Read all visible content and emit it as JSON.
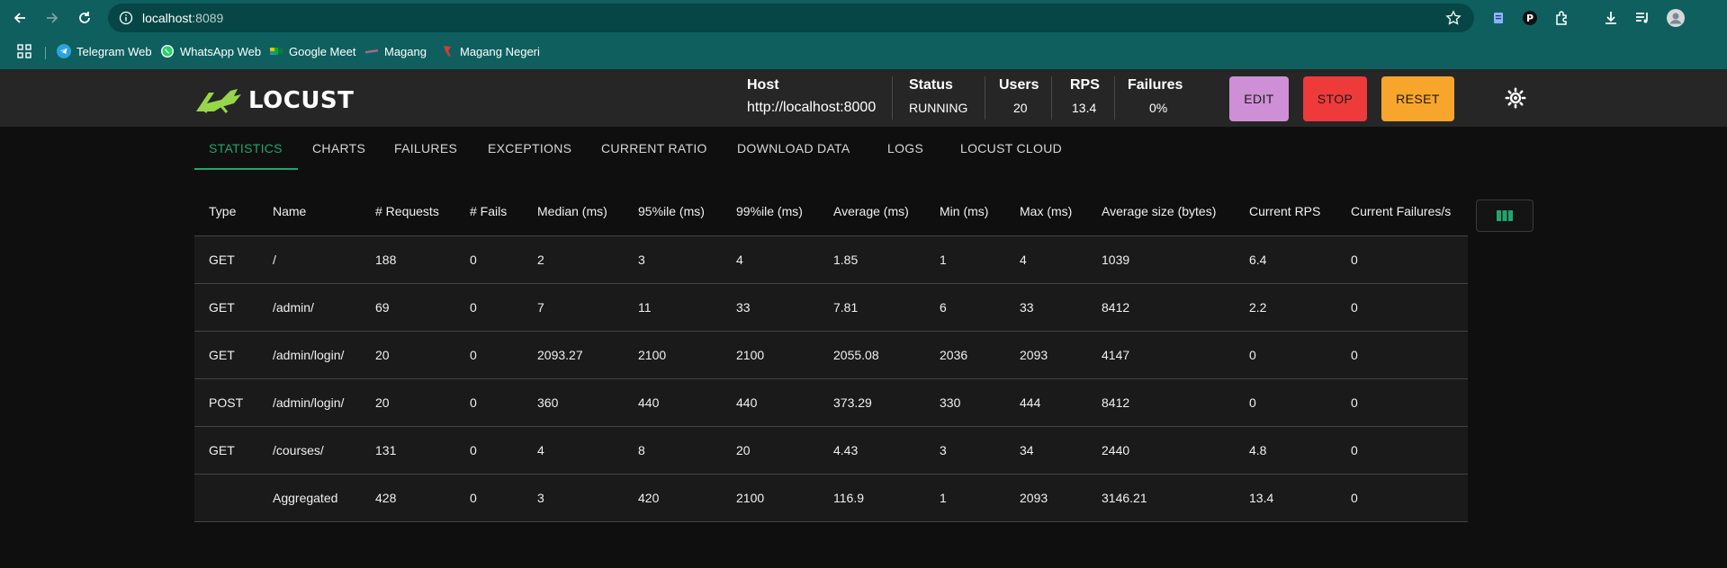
{
  "browser": {
    "url_host": "localhost",
    "url_port": ":8089",
    "bookmarks": [
      {
        "label": "Telegram Web",
        "icon": "telegram-icon"
      },
      {
        "label": "WhatsApp Web",
        "icon": "whatsapp-icon"
      },
      {
        "label": "Google Meet",
        "icon": "google-meet-icon"
      },
      {
        "label": "Magang",
        "icon": "magang-icon"
      },
      {
        "label": "Magang Negeri",
        "icon": "magang-negeri-icon"
      }
    ]
  },
  "header": {
    "logo_text": "LOCUST",
    "host_label": "Host",
    "host_value": "http://localhost:8000",
    "status_label": "Status",
    "status_value": "RUNNING",
    "users_label": "Users",
    "users_value": "20",
    "rps_label": "RPS",
    "rps_value": "13.4",
    "failures_label": "Failures",
    "failures_value": "0%",
    "edit_label": "EDIT",
    "stop_label": "STOP",
    "reset_label": "RESET"
  },
  "tabs": [
    {
      "label": "STATISTICS",
      "active": true
    },
    {
      "label": "CHARTS"
    },
    {
      "label": "FAILURES"
    },
    {
      "label": "EXCEPTIONS"
    },
    {
      "label": "CURRENT RATIO"
    },
    {
      "label": "DOWNLOAD DATA"
    },
    {
      "label": "LOGS"
    },
    {
      "label": "LOCUST CLOUD"
    }
  ],
  "table": {
    "columns": [
      "Type",
      "Name",
      "# Requests",
      "# Fails",
      "Median (ms)",
      "95%ile (ms)",
      "99%ile (ms)",
      "Average (ms)",
      "Min (ms)",
      "Max (ms)",
      "Average size (bytes)",
      "Current RPS",
      "Current Failures/s"
    ],
    "rows": [
      [
        "GET",
        "/",
        "188",
        "0",
        "2",
        "3",
        "4",
        "1.85",
        "1",
        "4",
        "1039",
        "6.4",
        "0"
      ],
      [
        "GET",
        "/admin/",
        "69",
        "0",
        "7",
        "11",
        "33",
        "7.81",
        "6",
        "33",
        "8412",
        "2.2",
        "0"
      ],
      [
        "GET",
        "/admin/login/",
        "20",
        "0",
        "2093.27",
        "2100",
        "2100",
        "2055.08",
        "2036",
        "2093",
        "4147",
        "0",
        "0"
      ],
      [
        "POST",
        "/admin/login/",
        "20",
        "0",
        "360",
        "440",
        "440",
        "373.29",
        "330",
        "444",
        "8412",
        "0",
        "0"
      ],
      [
        "GET",
        "/courses/",
        "131",
        "0",
        "4",
        "8",
        "20",
        "4.43",
        "3",
        "34",
        "2440",
        "4.8",
        "0"
      ],
      [
        "",
        "Aggregated",
        "428",
        "0",
        "3",
        "420",
        "2100",
        "116.9",
        "1",
        "2093",
        "3146.21",
        "13.4",
        "0"
      ]
    ]
  },
  "colors": {
    "accent": "#21a56f",
    "edit": "#cf8fd6",
    "stop": "#ee3a3a",
    "reset": "#f7a52b",
    "chrome": "#0f5f5f"
  }
}
